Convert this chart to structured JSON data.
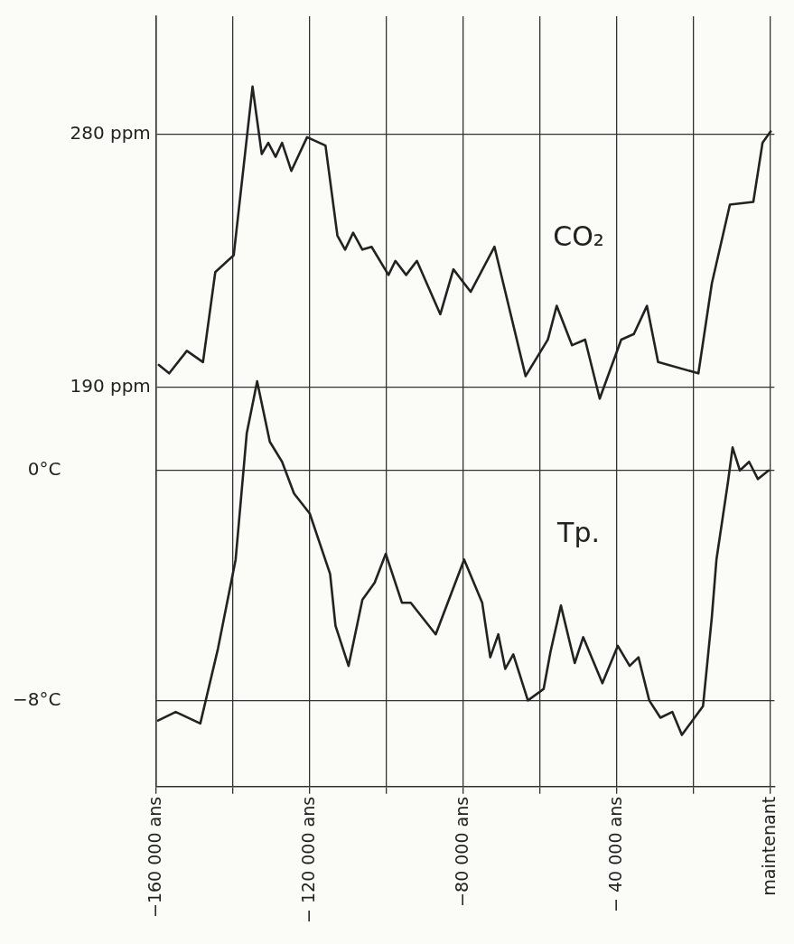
{
  "chart_data": {
    "type": "line",
    "xlim": [
      -160000,
      1000
    ],
    "xticks": [
      {
        "value": -160000,
        "label": "−160 000 ans"
      },
      {
        "value": -140000,
        "label": null
      },
      {
        "value": -120000,
        "label": "− 120 000 ans"
      },
      {
        "value": -100000,
        "label": null
      },
      {
        "value": -80000,
        "label": "−80 000 ans"
      },
      {
        "value": -60000,
        "label": null
      },
      {
        "value": -40000,
        "label": "− 40 000 ans"
      },
      {
        "value": -20000,
        "label": null
      },
      {
        "value": 0,
        "label": "maintenant"
      }
    ],
    "ylim": [
      48,
      322
    ],
    "yticks": [
      {
        "value": 190,
        "label": "190 ppm"
      },
      {
        "value": 280,
        "label": "280 ppm"
      }
    ],
    "y2lim": [
      -11,
      15.8
    ],
    "y2ticks": [
      {
        "value": -8,
        "label": "−8°C"
      },
      {
        "value": 0,
        "label": "0°C"
      }
    ],
    "grid": true,
    "legend": false,
    "marker": "none",
    "line_style": "solid",
    "series": [
      {
        "name": "CO₂",
        "color": "#222222",
        "axis": "y",
        "x": [
          -159300,
          -156600,
          -152000,
          -147800,
          -144600,
          -139800,
          -134900,
          -132500,
          -130800,
          -128900,
          -127200,
          -124800,
          -120700,
          -115900,
          -112800,
          -110800,
          -108700,
          -106300,
          -103900,
          -99500,
          -97700,
          -94900,
          -92100,
          -86000,
          -82600,
          -78100,
          -71900,
          -63800,
          -58000,
          -55700,
          -51700,
          -48300,
          -44500,
          -38900,
          -35600,
          -32200,
          -29300,
          -18800,
          -15300,
          -10600,
          -4500,
          -2100,
          0
        ],
        "values": [
          198,
          195,
          203,
          199,
          231,
          237,
          297,
          273,
          277,
          272,
          277,
          267,
          279,
          276,
          244,
          239,
          245,
          239,
          240,
          230,
          235,
          230,
          235,
          216,
          232,
          224,
          240,
          194,
          207,
          219,
          205,
          207,
          186,
          207,
          209,
          219,
          199,
          195,
          227,
          255,
          256,
          277,
          281
        ]
      },
      {
        "name": "Tp.",
        "color": "#222222",
        "axis": "y2",
        "x": [
          -159500,
          -154900,
          -148500,
          -143900,
          -139300,
          -136400,
          -133700,
          -130400,
          -127200,
          -124100,
          -120000,
          -114700,
          -113300,
          -109900,
          -106300,
          -103100,
          -100200,
          -96000,
          -93700,
          -87200,
          -79800,
          -75100,
          -73000,
          -70900,
          -69100,
          -67000,
          -63200,
          -59100,
          -57300,
          -54600,
          -51000,
          -48800,
          -43800,
          -39800,
          -36700,
          -34400,
          -31600,
          -28700,
          -25600,
          -23100,
          -17600,
          -15300,
          -14100,
          -11100,
          -9900,
          -8000,
          -5600,
          -3300,
          -500
        ],
        "values": [
          -8.7,
          -8.4,
          -8.8,
          -6.2,
          -3.1,
          1.3,
          3.1,
          1.0,
          0.3,
          -0.8,
          -1.5,
          -3.6,
          -5.4,
          -6.8,
          -4.5,
          -3.9,
          -2.9,
          -4.6,
          -4.6,
          -5.7,
          -3.1,
          -4.6,
          -6.5,
          -5.7,
          -6.9,
          -6.4,
          -8.0,
          -7.6,
          -6.3,
          -4.7,
          -6.7,
          -5.8,
          -7.4,
          -6.1,
          -6.8,
          -6.5,
          -8.0,
          -8.6,
          -8.4,
          -9.2,
          -8.2,
          -5.1,
          -3.1,
          -0.4,
          0.8,
          0.0,
          0.3,
          -0.3,
          0.0
        ]
      }
    ]
  }
}
